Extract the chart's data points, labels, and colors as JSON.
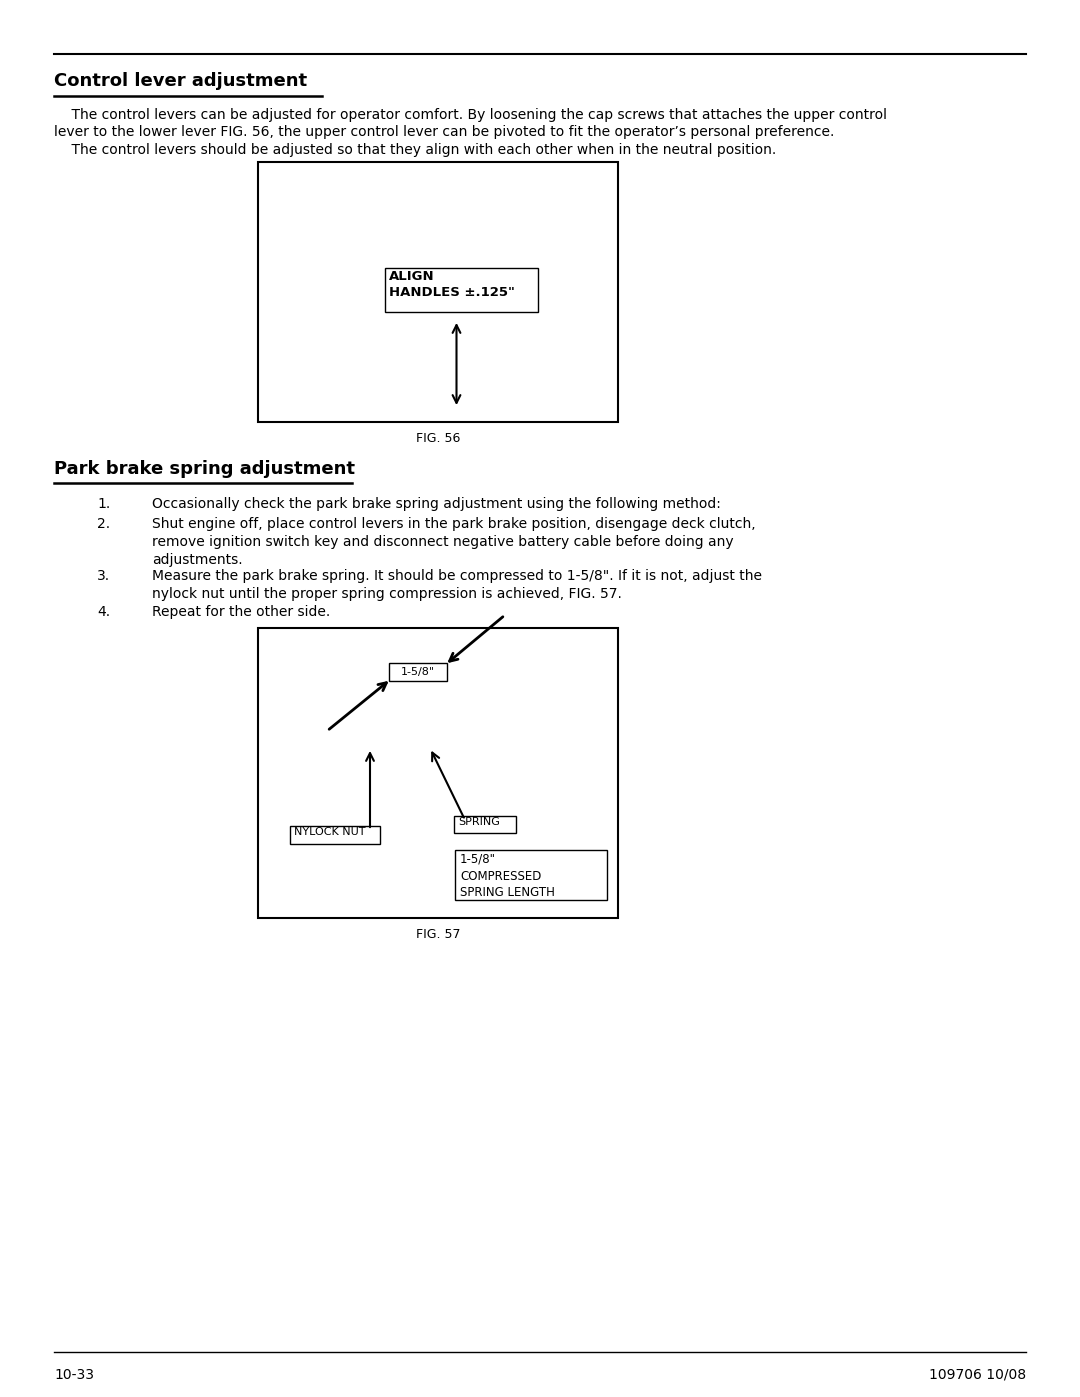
{
  "title_section1": "Control lever adjustment",
  "para1_line1": "    The control levers can be adjusted for operator comfort. By loosening the cap screws that attaches the upper control",
  "para1_line2": "lever to the lower lever FIG. 56, the upper control lever can be pivoted to fit the operator’s personal preference.",
  "para1_line3": "    The control levers should be adjusted so that they align with each other when in the neutral position.",
  "fig56_label": "FIG. 56",
  "fig56_box_text": "ALIGN\nHANDLES ±.125\"",
  "title_section2": "Park brake spring adjustment",
  "list_item1_num": "1.",
  "list_item1_text": "Occasionally check the park brake spring adjustment using the following method:",
  "list_item2_num": "2.",
  "list_item2_text": "Shut engine off, place control levers in the park brake position, disengage deck clutch,\nremove ignition switch key and disconnect negative battery cable before doing any\nadjustments.",
  "list_item3_num": "3.",
  "list_item3_text": "Measure the park brake spring. It should be compressed to 1-5/8\". If it is not, adjust the\nnylock nut until the proper spring compression is achieved, FIG. 57.",
  "list_item4_num": "4.",
  "list_item4_text": "Repeat for the other side.",
  "fig57_label": "FIG. 57",
  "fig57_measurement": "1-5/8\"",
  "fig57_nylock": "NYLOCK NUT",
  "fig57_spring": "SPRING",
  "fig57_compressed": "1-5/8\"\nCOMPRESSED\nSPRING LENGTH",
  "footer_left": "10-33",
  "footer_right": "109706 10/08",
  "bg_color": "#ffffff",
  "text_color": "#000000",
  "font_size_title": 13,
  "font_size_body": 10,
  "font_size_fig_label": 9,
  "font_size_footer": 10
}
